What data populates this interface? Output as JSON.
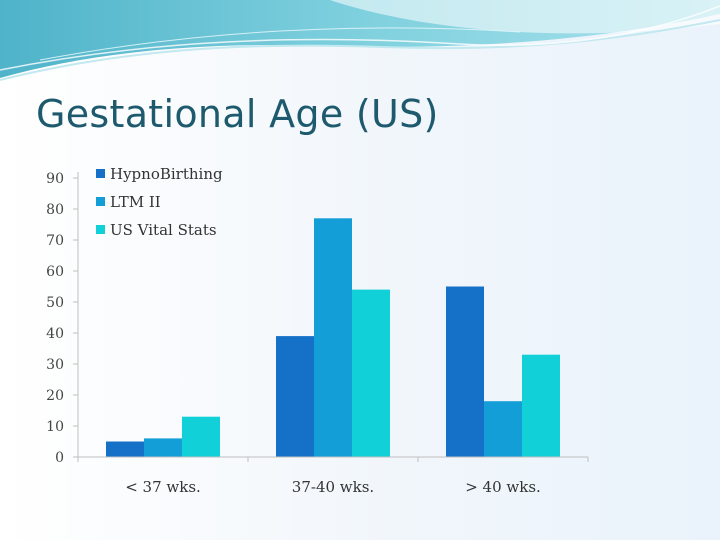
{
  "slide": {
    "title": "Gestational Age (US)"
  },
  "chart_data": {
    "type": "bar",
    "categories": [
      "< 37 wks.",
      "37-40 wks.",
      "> 40 wks."
    ],
    "series": [
      {
        "name": "HypnoBirthing",
        "values": [
          5,
          39,
          55
        ],
        "color": "#1570c8"
      },
      {
        "name": "LTM II",
        "values": [
          6,
          77,
          18
        ],
        "color": "#139ed8"
      },
      {
        "name": "US Vital Stats",
        "values": [
          13,
          54,
          33
        ],
        "color": "#12d0d8"
      }
    ],
    "yticks": [
      0,
      10,
      20,
      30,
      40,
      50,
      60,
      70,
      80,
      90
    ],
    "ylim": [
      0,
      90
    ],
    "grid": false,
    "legend": "top-left"
  }
}
